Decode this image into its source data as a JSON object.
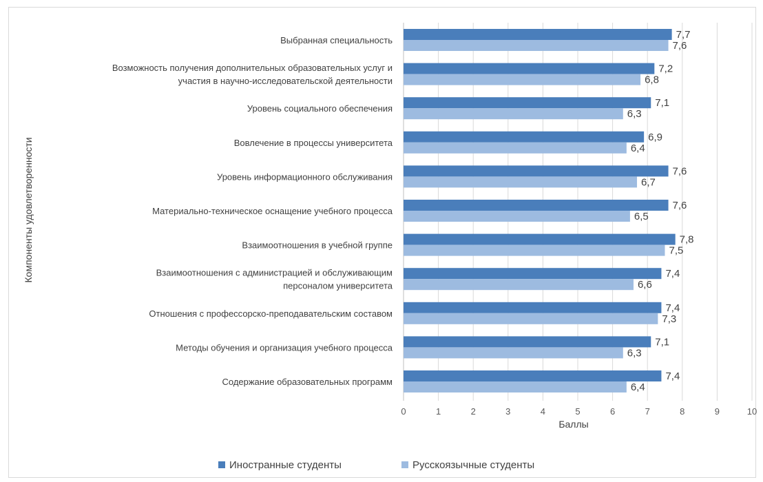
{
  "chart_data": {
    "type": "bar",
    "orientation": "horizontal",
    "categories": [
      "Выбранная специальность",
      [
        "Возможность получения дополнительных образовательных услуг и",
        "участия в научно-исследовательской деятельности"
      ],
      "Уровень социального обеспечения",
      "Вовлечение в процессы университета",
      "Уровень информационного обслуживания",
      "Материально-техническое оснащение учебного процесса",
      "Взаимоотношения в учебной группе",
      [
        "Взаимоотношения с администрацией и обслуживающим",
        "персоналом университета"
      ],
      "Отношения с профессорско-преподавательским составом",
      "Методы обучения и организация учебного процесса",
      "Содержание образовательных программ"
    ],
    "series": [
      {
        "name": "Иностранные студенты",
        "color": "#4a7ebb",
        "values": [
          7.7,
          7.2,
          7.1,
          6.9,
          7.6,
          7.6,
          7.8,
          7.4,
          7.4,
          7.1,
          7.4
        ],
        "labels": [
          "7,7",
          "7,2",
          "7,1",
          "6,9",
          "7,6",
          "7,6",
          "7,8",
          "7,4",
          "7,4",
          "7,1",
          "7,4"
        ]
      },
      {
        "name": "Русскоязычные студенты",
        "color": "#9dbbe0",
        "values": [
          7.6,
          6.8,
          6.3,
          6.4,
          6.7,
          6.5,
          7.5,
          6.6,
          7.3,
          6.3,
          6.4
        ],
        "labels": [
          "7,6",
          "6,8",
          "6,3",
          "6,4",
          "6,7",
          "6,5",
          "7,5",
          "6,6",
          "7,3",
          "6,3",
          "6,4"
        ]
      }
    ],
    "xlabel": "Баллы",
    "ylabel": "Компоненты удовлетворенности",
    "xlim": [
      0,
      10
    ],
    "xticks": [
      "0",
      "1",
      "2",
      "3",
      "4",
      "5",
      "6",
      "7",
      "8",
      "9",
      "10"
    ],
    "grid": "vertical",
    "legend": "bottom-center"
  }
}
